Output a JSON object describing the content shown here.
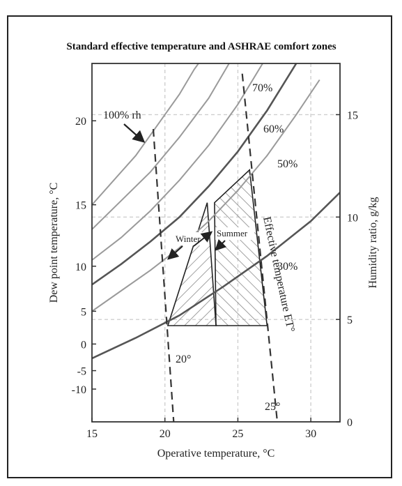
{
  "chart_data": {
    "type": "line",
    "title": "Standard effective temperature and ASHRAE comfort zones",
    "xlabel": "Operative temperature, °C",
    "ylabel_left": "Dew point temperature, °C",
    "ylabel_right": "Humidity ratio, g/kg",
    "xlim": [
      15,
      32
    ],
    "ylim": [
      0,
      17.5
    ],
    "x_ticks": [
      "15",
      "20",
      "25",
      "30"
    ],
    "y_ticks_right": [
      "0",
      "5",
      "10",
      "15"
    ],
    "y_ticks_left": [
      {
        "label": "20",
        "w": 14.7
      },
      {
        "label": "15",
        "w": 10.6
      },
      {
        "label": "10",
        "w": 7.6
      },
      {
        "label": "5",
        "w": 5.4
      },
      {
        "label": "0",
        "w": 3.8
      },
      {
        "label": "-5",
        "w": 2.5
      },
      {
        "label": "-10",
        "w": 1.6
      }
    ],
    "grid": true,
    "rh_curves": [
      {
        "name": "100% rh",
        "points": [
          [
            15,
            10.6
          ],
          [
            16.5,
            11.8
          ],
          [
            18,
            13.0
          ],
          [
            19,
            14.0
          ],
          [
            20,
            15.0
          ],
          [
            21,
            16.0
          ],
          [
            22,
            17.2
          ],
          [
            22.3,
            17.5
          ]
        ]
      },
      {
        "name": "",
        "points": [
          [
            15,
            9.4
          ],
          [
            17,
            10.8
          ],
          [
            19,
            12.2
          ],
          [
            21,
            13.9
          ],
          [
            23,
            15.8
          ],
          [
            24.4,
            17.5
          ]
        ]
      },
      {
        "name": "70%",
        "points": [
          [
            15,
            7.9
          ],
          [
            17,
            9.0
          ],
          [
            19,
            10.3
          ],
          [
            21,
            11.8
          ],
          [
            23,
            13.5
          ],
          [
            25,
            15.5
          ],
          [
            26.7,
            17.5
          ]
        ]
      },
      {
        "name": "60%",
        "points": [
          [
            15,
            6.7
          ],
          [
            17,
            7.7
          ],
          [
            19,
            8.8
          ],
          [
            21,
            10.0
          ],
          [
            23,
            11.5
          ],
          [
            25,
            13.2
          ],
          [
            27,
            15.2
          ],
          [
            29,
            17.5
          ]
        ]
      },
      {
        "name": "50%",
        "points": [
          [
            15,
            5.4
          ],
          [
            17,
            6.4
          ],
          [
            19,
            7.4
          ],
          [
            21,
            8.5
          ],
          [
            23,
            9.8
          ],
          [
            25,
            11.3
          ],
          [
            27,
            13.0
          ],
          [
            29,
            15.0
          ],
          [
            30.6,
            16.7
          ]
        ]
      },
      {
        "name": "30%",
        "points": [
          [
            15,
            3.1
          ],
          [
            18,
            4.1
          ],
          [
            21,
            5.2
          ],
          [
            24,
            6.6
          ],
          [
            27,
            8.1
          ],
          [
            30,
            9.8
          ],
          [
            32,
            11.2
          ]
        ]
      }
    ],
    "rh_bold": [
      false,
      false,
      false,
      true,
      false,
      true
    ],
    "et_lines": [
      {
        "name": "20°",
        "points": [
          [
            19.2,
            14.3
          ],
          [
            20.6,
            0
          ]
        ]
      },
      {
        "name": "25°",
        "points": [
          [
            25.3,
            17.0
          ],
          [
            27.7,
            0
          ]
        ]
      }
    ],
    "winter_zone": [
      [
        20.2,
        4.7
      ],
      [
        23.5,
        4.7
      ],
      [
        22.9,
        10.7
      ]
    ],
    "summer_zone": [
      [
        23.5,
        4.7
      ],
      [
        27.0,
        4.7
      ],
      [
        25.8,
        12.3
      ],
      [
        23.4,
        10.7
      ]
    ],
    "annotations": {
      "rh100": "100% rh",
      "rh70": "70%",
      "rh60": "60%",
      "rh50": "50%",
      "rh30": "30%",
      "winter": "Winter",
      "summer": "Summer",
      "et_label": "Effective temperature ET°",
      "et20": "20°",
      "et25": "25°"
    }
  }
}
